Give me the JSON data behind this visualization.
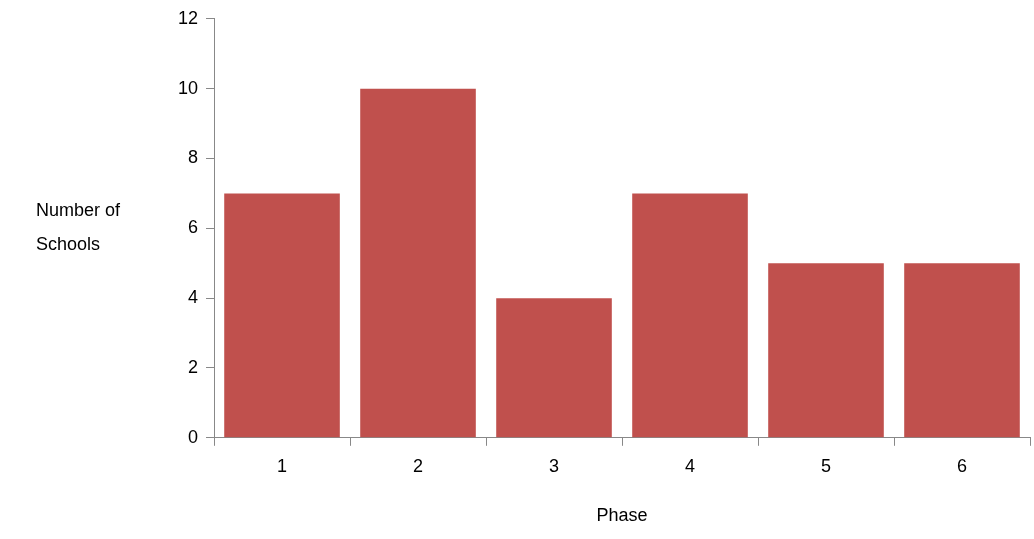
{
  "chart_data": {
    "type": "bar",
    "xlabel": "Phase",
    "ylabel": "Number of Schools",
    "categories": [
      "1",
      "2",
      "3",
      "4",
      "5",
      "6"
    ],
    "series": [
      {
        "color": "#c0504d",
        "values": [
          7,
          10,
          4,
          7,
          5,
          5
        ]
      }
    ],
    "ylim": [
      0,
      12
    ],
    "yticks": [
      0,
      2,
      4,
      6,
      8,
      10,
      12
    ],
    "grid": false,
    "legend": false
  }
}
